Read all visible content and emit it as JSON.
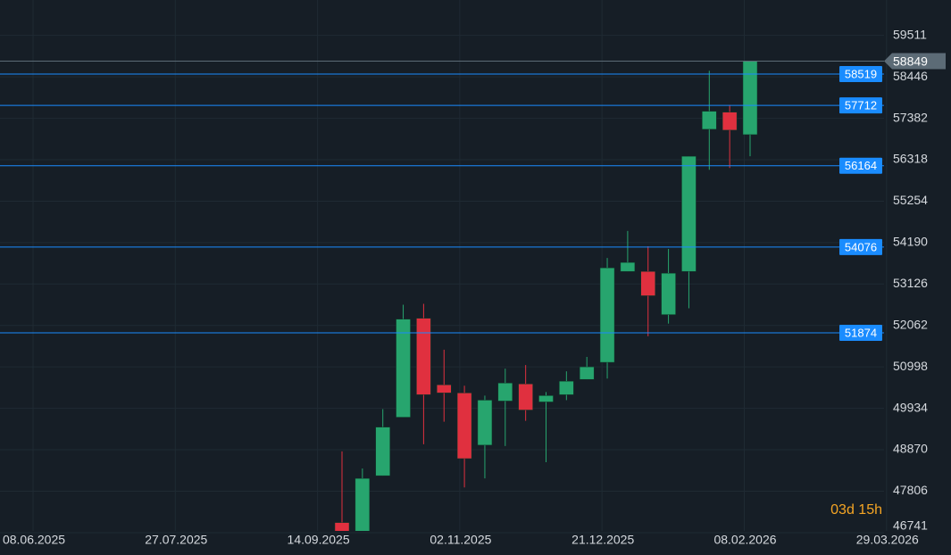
{
  "chart_data": {
    "type": "candlestick",
    "open": [
      47000,
      46650,
      48203,
      49705,
      52247,
      50537,
      50329,
      48989,
      50121,
      50560,
      50098,
      50283,
      50676,
      51115,
      53449,
      53449,
      52340,
      53449,
      57100,
      57540,
      56962
    ],
    "high": [
      48827,
      48388,
      49913,
      52594,
      52617,
      51439,
      50514,
      50260,
      50953,
      51045,
      50352,
      50884,
      51254,
      53796,
      54489,
      54096,
      54027,
      56407,
      58602,
      57725,
      58849
    ],
    "low": [
      46600,
      46600,
      48203,
      49705,
      49012,
      49590,
      47902,
      48134,
      48966,
      49613,
      48550,
      50144,
      50676,
      50699,
      53449,
      51785,
      52109,
      52502,
      56060,
      56107,
      56407
    ],
    "close": [
      46650,
      48134,
      49451,
      52224,
      50283,
      50329,
      48642,
      50144,
      50583,
      49890,
      50260,
      50630,
      50999,
      53541,
      53680,
      52825,
      53403,
      56407,
      57563,
      57077,
      58849
    ],
    "up_color": "#27a56e",
    "down_color": "#e0303f",
    "ylim": [
      46671,
      60420
    ],
    "yticks": [
      46741,
      47806,
      48870,
      49934,
      50998,
      52062,
      53126,
      54190,
      55254,
      56318,
      57382,
      58446,
      59511
    ],
    "x_labels": [
      "08.06.2025",
      "27.07.2025",
      "14.09.2025",
      "02.11.2025",
      "21.12.2025",
      "08.02.2026",
      "29.03.2026"
    ],
    "levels": [
      58519,
      57712,
      56164,
      54076,
      51874
    ],
    "level_color": "#1a8cff",
    "last_price": 58849,
    "countdown": "03d 15h",
    "grid": true
  }
}
